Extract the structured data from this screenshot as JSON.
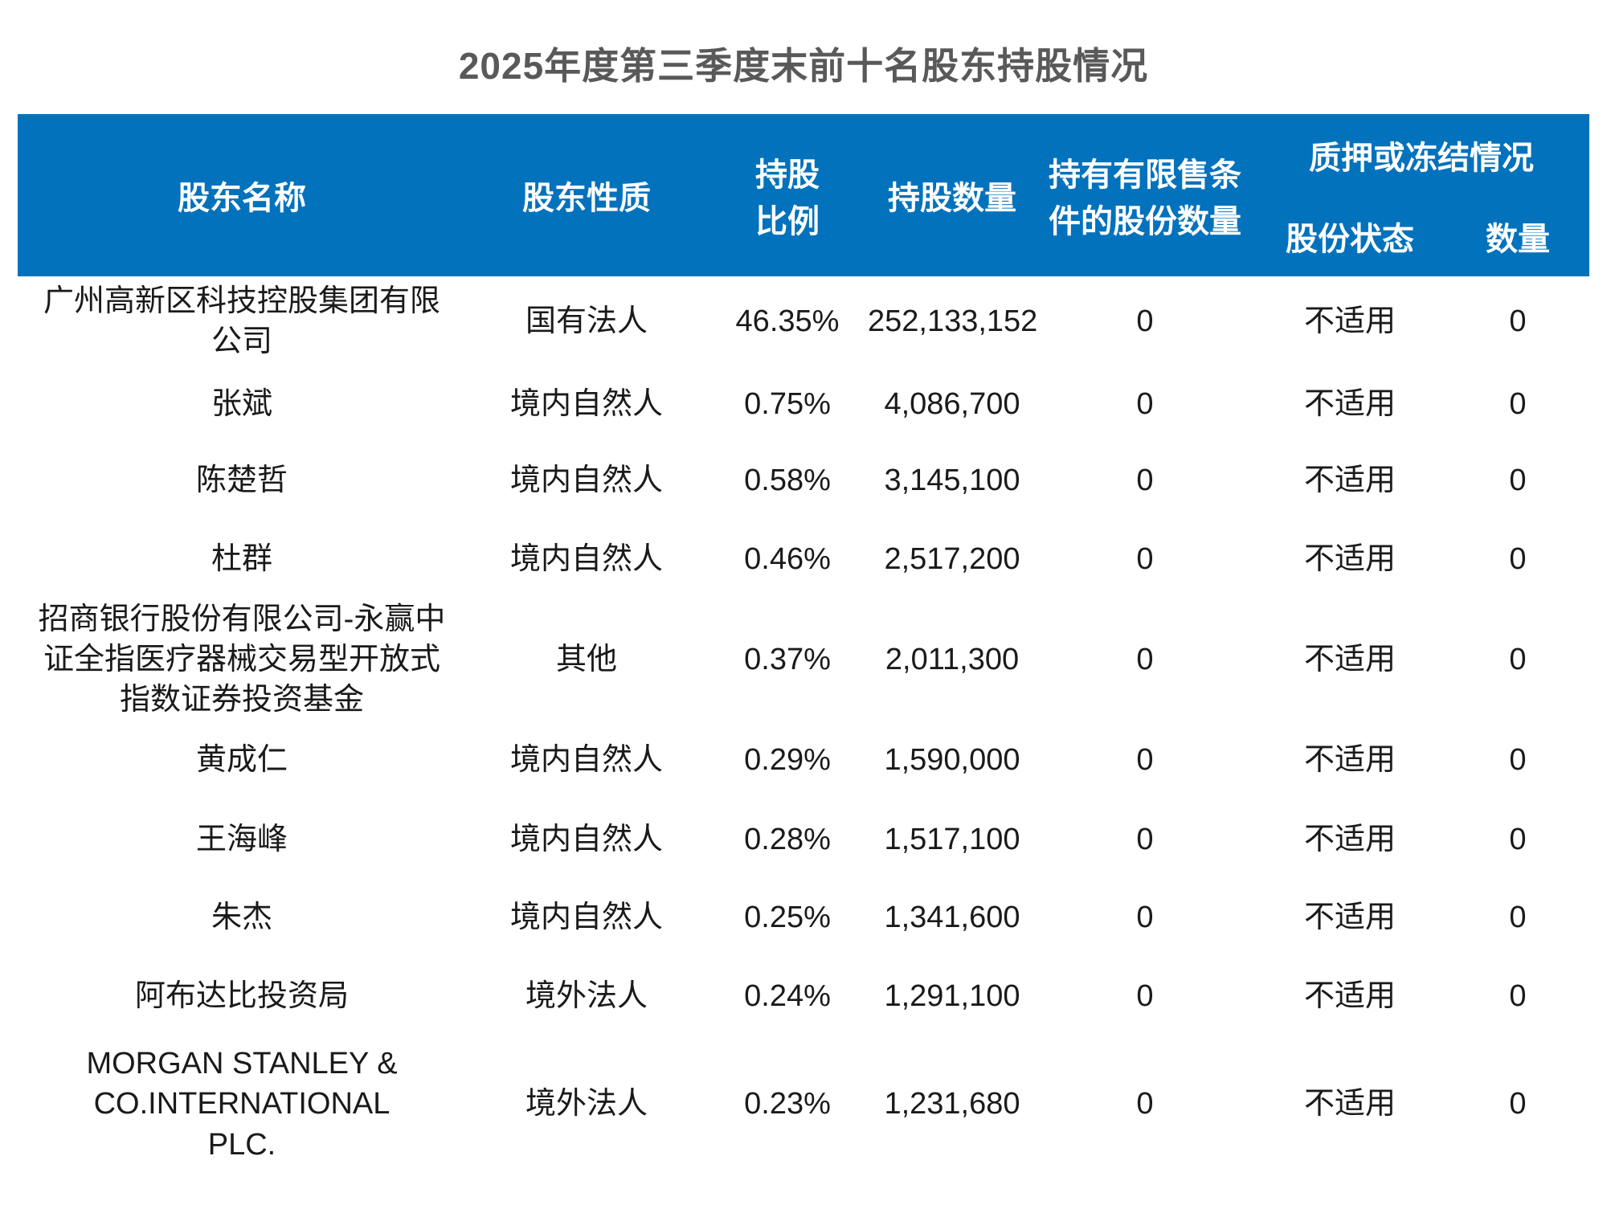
{
  "title": "2025年度第三季度末前十名股东持股情况",
  "colors": {
    "header_bg": "#0272BC",
    "header_text": "#FFFFFF",
    "title_text": "#595959",
    "body_text": "#1A1A1A"
  },
  "table": {
    "headers": {
      "shareholder_name": "股东名称",
      "shareholder_nature": "股东性质",
      "shareholding_ratio": "持股\n比例",
      "shares_held": "持股数量",
      "restricted_shares": "持有有限售条\n件的股份数量",
      "pledge_group": "质押或冻结情况",
      "share_status": "股份状态",
      "quantity": "数量"
    },
    "rows": [
      {
        "name": "广州高新区科技控股集团有限\n公司",
        "nature": "国有法人",
        "ratio": "46.35%",
        "shares": "252,133,152",
        "restricted": "0",
        "status": "不适用",
        "qty": "0"
      },
      {
        "name": "张斌",
        "nature": "境内自然人",
        "ratio": "0.75%",
        "shares": "4,086,700",
        "restricted": "0",
        "status": "不适用",
        "qty": "0"
      },
      {
        "name": "陈楚哲",
        "nature": "境内自然人",
        "ratio": "0.58%",
        "shares": "3,145,100",
        "restricted": "0",
        "status": "不适用",
        "qty": "0"
      },
      {
        "name": "杜群",
        "nature": "境内自然人",
        "ratio": "0.46%",
        "shares": "2,517,200",
        "restricted": "0",
        "status": "不适用",
        "qty": "0"
      },
      {
        "name": "招商银行股份有限公司-永赢中\n证全指医疗器械交易型开放式\n指数证券投资基金",
        "nature": "其他",
        "ratio": "0.37%",
        "shares": "2,011,300",
        "restricted": "0",
        "status": "不适用",
        "qty": "0"
      },
      {
        "name": "黄成仁",
        "nature": "境内自然人",
        "ratio": "0.29%",
        "shares": "1,590,000",
        "restricted": "0",
        "status": "不适用",
        "qty": "0"
      },
      {
        "name": "王海峰",
        "nature": "境内自然人",
        "ratio": "0.28%",
        "shares": "1,517,100",
        "restricted": "0",
        "status": "不适用",
        "qty": "0"
      },
      {
        "name": "朱杰",
        "nature": "境内自然人",
        "ratio": "0.25%",
        "shares": "1,341,600",
        "restricted": "0",
        "status": "不适用",
        "qty": "0"
      },
      {
        "name": "阿布达比投资局",
        "nature": "境外法人",
        "ratio": "0.24%",
        "shares": "1,291,100",
        "restricted": "0",
        "status": "不适用",
        "qty": "0"
      },
      {
        "name": "MORGAN STANLEY &\nCO.INTERNATIONAL\nPLC.",
        "nature": "境外法人",
        "ratio": "0.23%",
        "shares": "1,231,680",
        "restricted": "0",
        "status": "不适用",
        "qty": "0"
      }
    ]
  }
}
